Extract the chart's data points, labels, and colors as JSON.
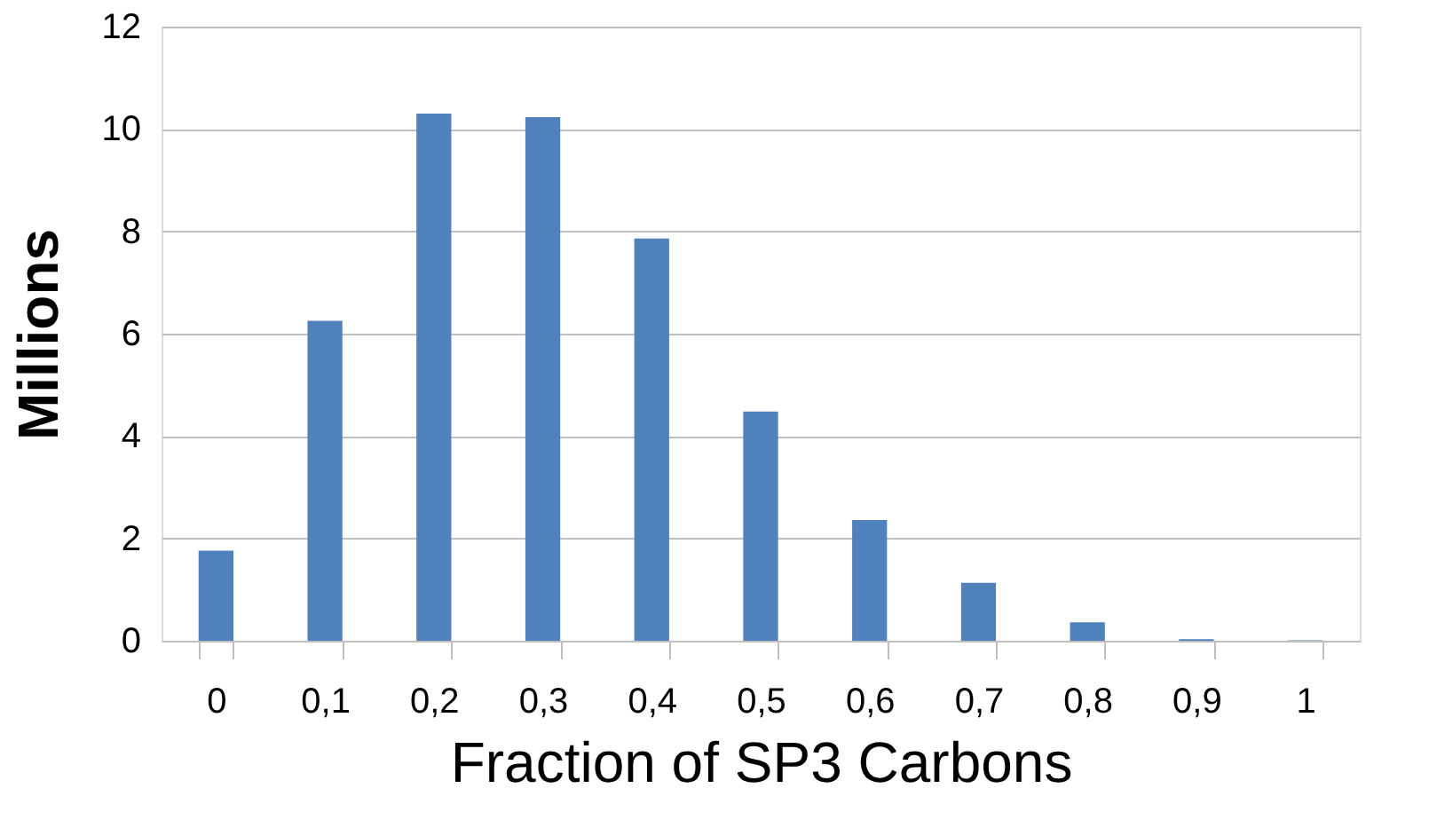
{
  "chart_data": {
    "type": "bar",
    "xlabel": "Fraction of SP3 Carbons",
    "ylabel": "Millions",
    "categories": [
      "0",
      "0,1",
      "0,2",
      "0,3",
      "0,4",
      "0,5",
      "0,6",
      "0,7",
      "0,8",
      "0,9",
      "1"
    ],
    "values": [
      1.76,
      6.25,
      10.3,
      10.23,
      7.86,
      4.48,
      2.36,
      1.13,
      0.36,
      0.03,
      0.01
    ],
    "color": "#4f81bd",
    "ylim": [
      0,
      12
    ],
    "yticks": [
      0,
      2,
      4,
      6,
      8,
      10,
      12
    ],
    "grid": "y"
  }
}
